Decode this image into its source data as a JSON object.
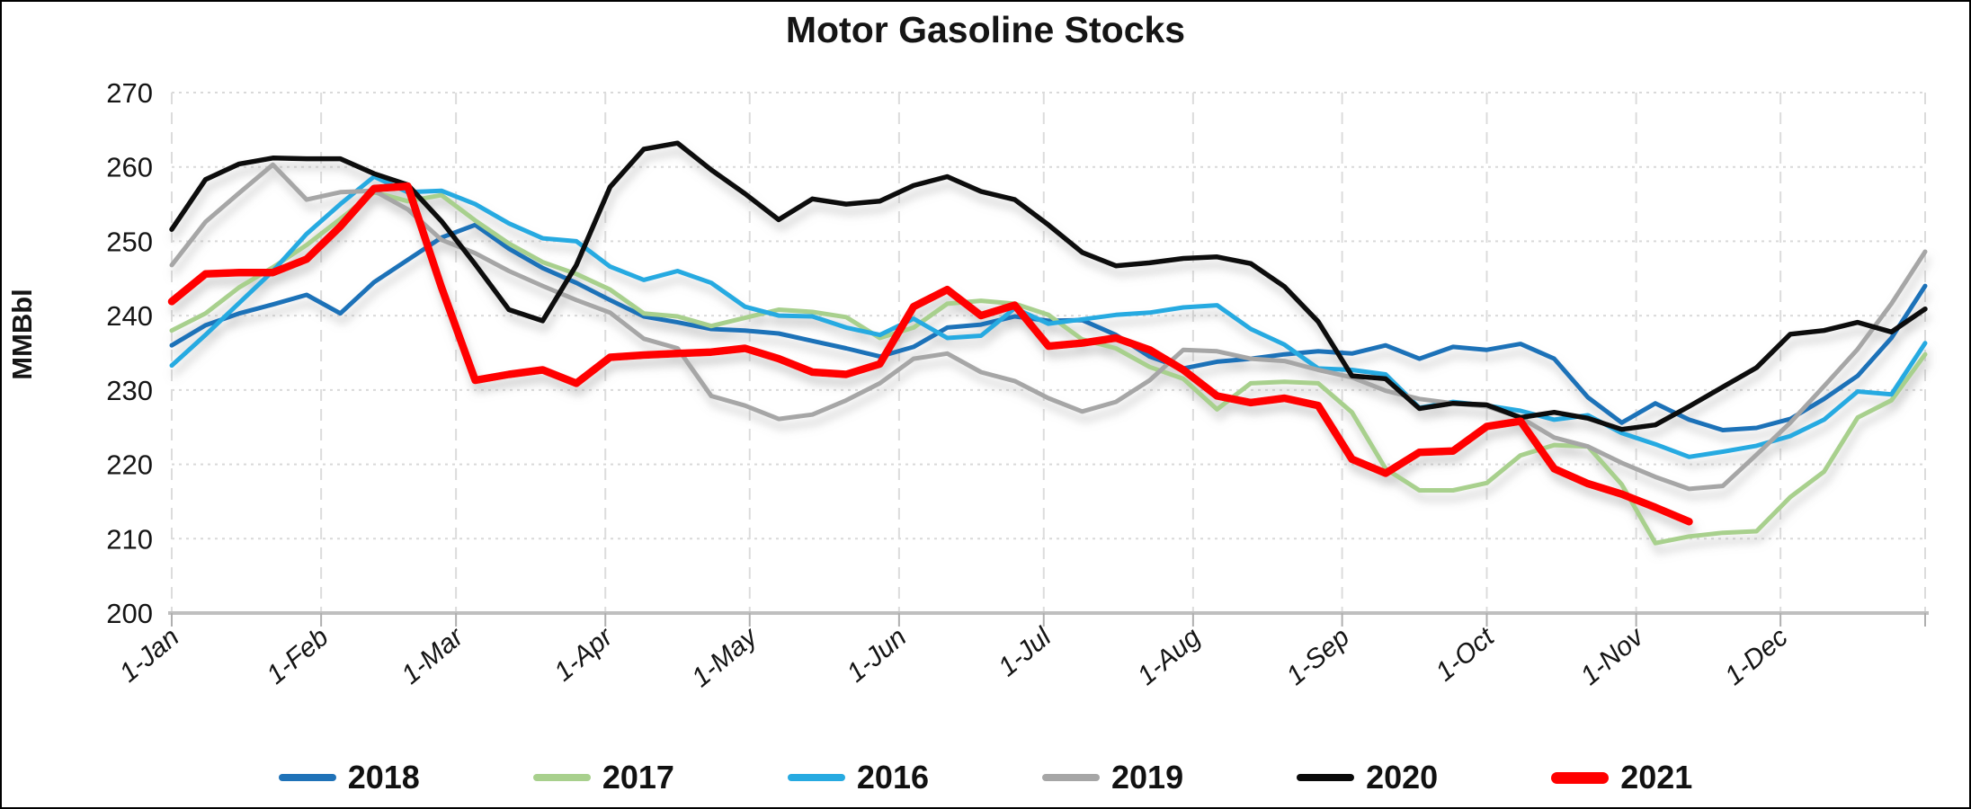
{
  "chart_data": {
    "type": "line",
    "title": "Motor Gasoline Stocks",
    "ylabel": "MMBbl",
    "ylim": [
      200,
      270
    ],
    "grid": true,
    "legend_position": "bottom",
    "weeks_total": 52,
    "ytick_labels": [
      "200",
      "210",
      "220",
      "230",
      "240",
      "250",
      "260",
      "270"
    ],
    "x_ticks": [
      {
        "label": "1-Jan",
        "week": 0
      },
      {
        "label": "1-Feb",
        "week": 4.43
      },
      {
        "label": "1-Mar",
        "week": 8.43
      },
      {
        "label": "1-Apr",
        "week": 12.86
      },
      {
        "label": "1-May",
        "week": 17.14
      },
      {
        "label": "1-Jun",
        "week": 21.57
      },
      {
        "label": "1-Jul",
        "week": 25.86
      },
      {
        "label": "1-Aug",
        "week": 30.29
      },
      {
        "label": "1-Sep",
        "week": 34.71
      },
      {
        "label": "1-Oct",
        "week": 39.0
      },
      {
        "label": "1-Nov",
        "week": 43.43
      },
      {
        "label": "1-Dec",
        "week": 47.71
      }
    ],
    "series": [
      {
        "name": "2018",
        "color": "#1F72B8",
        "width": 5,
        "values": [
          236.0,
          238.7,
          240.3,
          241.5,
          242.8,
          240.3,
          244.5,
          247.5,
          250.5,
          252.2,
          249.0,
          246.4,
          244.4,
          242.1,
          239.9,
          239.1,
          238.2,
          238.0,
          237.6,
          236.6,
          235.6,
          234.5,
          235.8,
          238.4,
          238.8,
          239.9,
          239.3,
          239.4,
          237.4,
          234.5,
          232.9,
          233.8,
          234.2,
          234.8,
          235.2,
          234.9,
          236.0,
          234.2,
          235.8,
          235.4,
          236.2,
          234.2,
          229.0,
          225.6,
          228.2,
          226.0,
          224.6,
          224.9,
          226.1,
          228.8,
          231.9,
          237.0,
          244.0
        ]
      },
      {
        "name": "2017",
        "color": "#A8D08D",
        "width": 5,
        "values": [
          238.0,
          240.3,
          243.8,
          246.5,
          249.5,
          253.0,
          256.6,
          255.4,
          256.2,
          252.8,
          249.7,
          247.2,
          245.6,
          243.5,
          240.3,
          239.9,
          238.6,
          239.7,
          240.8,
          240.5,
          239.8,
          237.0,
          238.4,
          241.6,
          242.0,
          241.6,
          240.1,
          236.8,
          235.6,
          233.1,
          231.5,
          227.4,
          230.9,
          231.1,
          230.9,
          227.0,
          219.4,
          216.5,
          216.5,
          217.5,
          221.2,
          222.6,
          222.4,
          217.3,
          209.4,
          210.3,
          210.8,
          211.0,
          215.6,
          219.0,
          226.3,
          228.6,
          234.8
        ]
      },
      {
        "name": "2016",
        "color": "#27AAE1",
        "width": 5,
        "values": [
          233.3,
          237.4,
          241.7,
          246.0,
          251.0,
          255.0,
          258.7,
          256.6,
          256.8,
          255.0,
          252.4,
          250.4,
          250.0,
          246.6,
          244.8,
          246.0,
          244.4,
          241.2,
          240.0,
          239.9,
          238.4,
          237.4,
          239.6,
          237.0,
          237.3,
          241.0,
          238.9,
          239.5,
          240.1,
          240.4,
          241.1,
          241.4,
          238.2,
          236.1,
          232.9,
          232.7,
          232.1,
          227.6,
          228.4,
          227.9,
          227.2,
          226.0,
          226.6,
          224.2,
          222.7,
          221.0,
          221.7,
          222.5,
          223.8,
          226.0,
          229.8,
          229.4,
          236.3
        ]
      },
      {
        "name": "2019",
        "color": "#A6A6A6",
        "width": 5,
        "values": [
          246.8,
          252.6,
          256.5,
          260.3,
          255.6,
          256.6,
          256.8,
          254.3,
          250.2,
          248.4,
          246.0,
          244.0,
          242.1,
          240.4,
          236.9,
          235.6,
          229.2,
          227.9,
          226.1,
          226.7,
          228.6,
          230.9,
          234.2,
          234.9,
          232.4,
          231.2,
          228.9,
          227.1,
          228.4,
          231.3,
          235.4,
          235.2,
          234.2,
          233.9,
          232.7,
          231.7,
          229.9,
          228.8,
          228.2,
          227.8,
          226.3,
          223.6,
          222.4,
          220.2,
          218.3,
          216.7,
          217.1,
          221.3,
          225.6,
          230.5,
          235.5,
          241.6,
          248.6
        ]
      },
      {
        "name": "2020",
        "color": "#0A0A0A",
        "width": 5.5,
        "values": [
          251.6,
          258.3,
          260.4,
          261.2,
          261.1,
          261.1,
          259.1,
          257.6,
          252.7,
          246.9,
          240.8,
          239.3,
          246.8,
          257.3,
          262.4,
          263.2,
          259.6,
          256.4,
          252.9,
          255.7,
          255.0,
          255.4,
          257.5,
          258.7,
          256.7,
          255.6,
          252.2,
          248.5,
          246.7,
          247.1,
          247.7,
          247.9,
          247.0,
          243.9,
          239.2,
          231.9,
          231.5,
          227.5,
          228.2,
          228.0,
          226.3,
          227.0,
          226.2,
          224.7,
          225.3,
          227.8,
          230.4,
          233.0,
          237.5,
          238.0,
          239.1,
          237.8,
          240.9
        ]
      },
      {
        "name": "2021",
        "color": "#FF0000",
        "width": 8.5,
        "values": [
          241.9,
          245.6,
          245.8,
          245.8,
          247.6,
          252.0,
          257.1,
          257.4,
          243.8,
          231.3,
          232.1,
          232.7,
          230.9,
          234.4,
          234.7,
          234.9,
          235.1,
          235.6,
          234.2,
          232.4,
          232.1,
          233.5,
          241.2,
          243.5,
          240.0,
          241.4,
          235.9,
          236.3,
          237.0,
          235.4,
          232.7,
          229.2,
          228.3,
          228.9,
          227.9,
          220.7,
          218.8,
          221.6,
          221.8,
          225.1,
          225.8,
          219.4,
          217.4,
          216.0,
          214.2,
          212.3
        ]
      }
    ]
  }
}
